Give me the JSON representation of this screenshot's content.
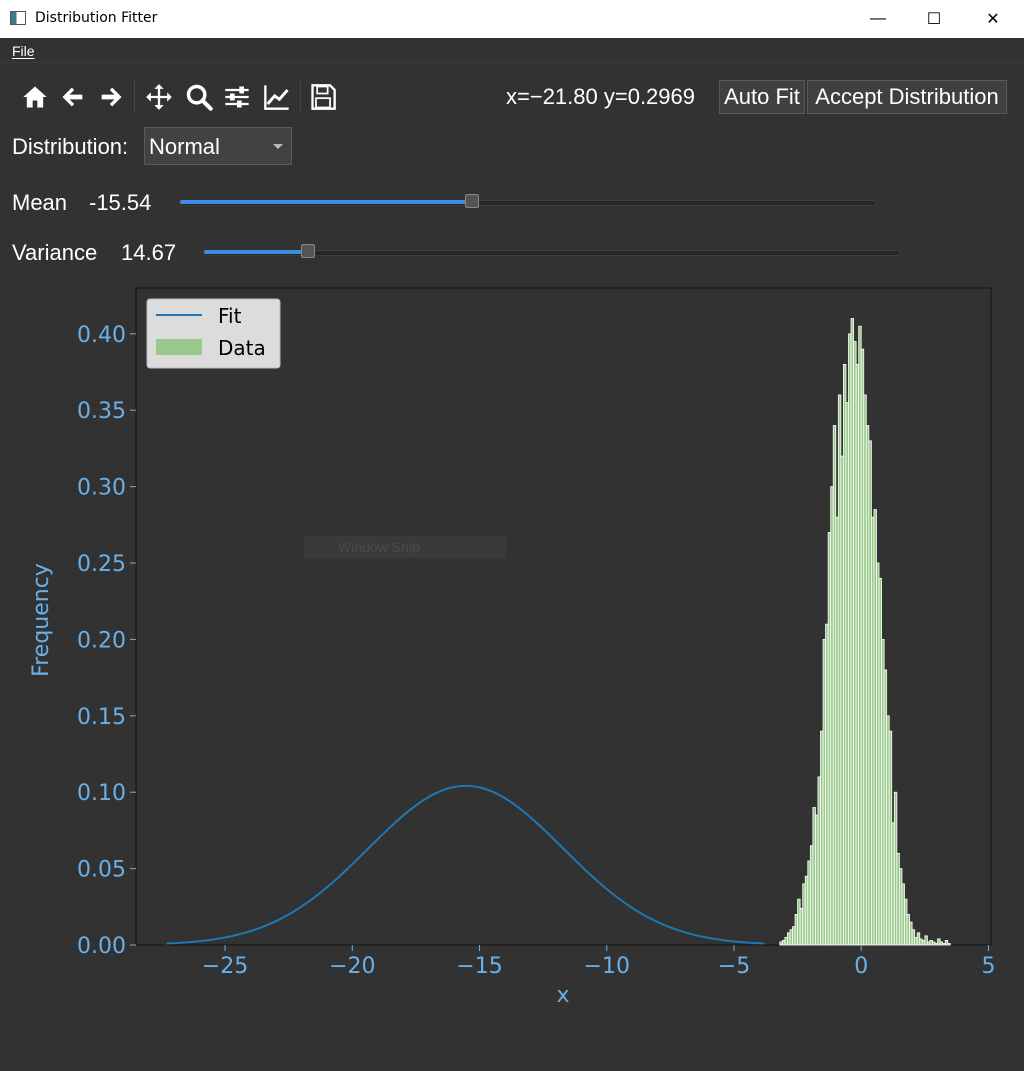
{
  "window": {
    "title": "Distribution Fitter",
    "minimize": "—",
    "maximize": "☐",
    "close": "✕"
  },
  "menu": {
    "file": "File"
  },
  "toolbar": {
    "icons": [
      "home-icon",
      "back-icon",
      "forward-icon",
      "pan-icon",
      "zoom-icon",
      "configure-subplots-icon",
      "edit-axis-icon",
      "save-icon"
    ],
    "coords": "x=−21.80 y=0.2969",
    "auto_fit": "Auto Fit",
    "accept": "Accept Distribution"
  },
  "controls": {
    "distribution_label": "Distribution:",
    "distribution_value": "Normal",
    "mean_label": "Mean",
    "mean_value": "-15.54",
    "mean_slider_fraction": 0.42,
    "variance_label": "Variance",
    "variance_value": "14.67",
    "variance_slider_fraction": 0.15
  },
  "overlay": {
    "watermark": "Window Snip"
  },
  "colors": {
    "accent": "#3d8ee0",
    "fit_line": "#1f77b4",
    "bars": "#9ac98c",
    "axis_text": "#6ab0e8"
  },
  "chart_data": {
    "type": "bar",
    "xlabel": "x",
    "ylabel": "Frequency",
    "xlim": [
      -28.5,
      5.1
    ],
    "ylim": [
      0,
      0.43
    ],
    "xticks": [
      -25,
      -20,
      -15,
      -10,
      -5,
      0,
      5
    ],
    "xtick_labels": [
      "−25",
      "−20",
      "−15",
      "−10",
      "−5",
      "0",
      "5"
    ],
    "yticks": [
      0.0,
      0.05,
      0.1,
      0.15,
      0.2,
      0.25,
      0.3,
      0.35,
      0.4
    ],
    "ytick_labels": [
      "0.00",
      "0.05",
      "0.10",
      "0.15",
      "0.20",
      "0.25",
      "0.30",
      "0.35",
      "0.40"
    ],
    "legend": {
      "placement": "top-left",
      "entries": [
        "Fit",
        "Data"
      ]
    },
    "fit": {
      "name": "Fit",
      "mean": -15.54,
      "variance": 14.67,
      "x_range": [
        -27.3,
        -3.8
      ]
    },
    "histogram": {
      "name": "Data",
      "bin_width": 0.1,
      "x": [
        -3.2,
        -3.1,
        -3.0,
        -2.9,
        -2.8,
        -2.7,
        -2.6,
        -2.5,
        -2.4,
        -2.3,
        -2.2,
        -2.1,
        -2.0,
        -1.9,
        -1.8,
        -1.7,
        -1.6,
        -1.5,
        -1.4,
        -1.3,
        -1.2,
        -1.1,
        -1.0,
        -0.9,
        -0.8,
        -0.7,
        -0.6,
        -0.5,
        -0.4,
        -0.3,
        -0.2,
        -0.1,
        0.0,
        0.1,
        0.2,
        0.3,
        0.4,
        0.5,
        0.6,
        0.7,
        0.8,
        0.9,
        1.0,
        1.1,
        1.2,
        1.3,
        1.4,
        1.5,
        1.6,
        1.7,
        1.8,
        1.9,
        2.0,
        2.1,
        2.2,
        2.3,
        2.4,
        2.5,
        2.6,
        2.7,
        2.8,
        2.9,
        3.0,
        3.1,
        3.2,
        3.3,
        3.4
      ],
      "values": [
        0.002,
        0.003,
        0.005,
        0.008,
        0.01,
        0.012,
        0.02,
        0.03,
        0.024,
        0.04,
        0.045,
        0.055,
        0.065,
        0.09,
        0.085,
        0.11,
        0.14,
        0.2,
        0.21,
        0.27,
        0.3,
        0.34,
        0.28,
        0.36,
        0.32,
        0.38,
        0.355,
        0.4,
        0.41,
        0.395,
        0.38,
        0.405,
        0.39,
        0.36,
        0.34,
        0.33,
        0.28,
        0.285,
        0.25,
        0.24,
        0.2,
        0.18,
        0.15,
        0.14,
        0.08,
        0.1,
        0.06,
        0.05,
        0.04,
        0.03,
        0.02,
        0.015,
        0.01,
        0.005,
        0.008,
        0.004,
        0.003,
        0.006,
        0.002,
        0.003,
        0.002,
        0.001,
        0.004,
        0.002,
        0.001,
        0.003,
        0.001
      ]
    }
  }
}
